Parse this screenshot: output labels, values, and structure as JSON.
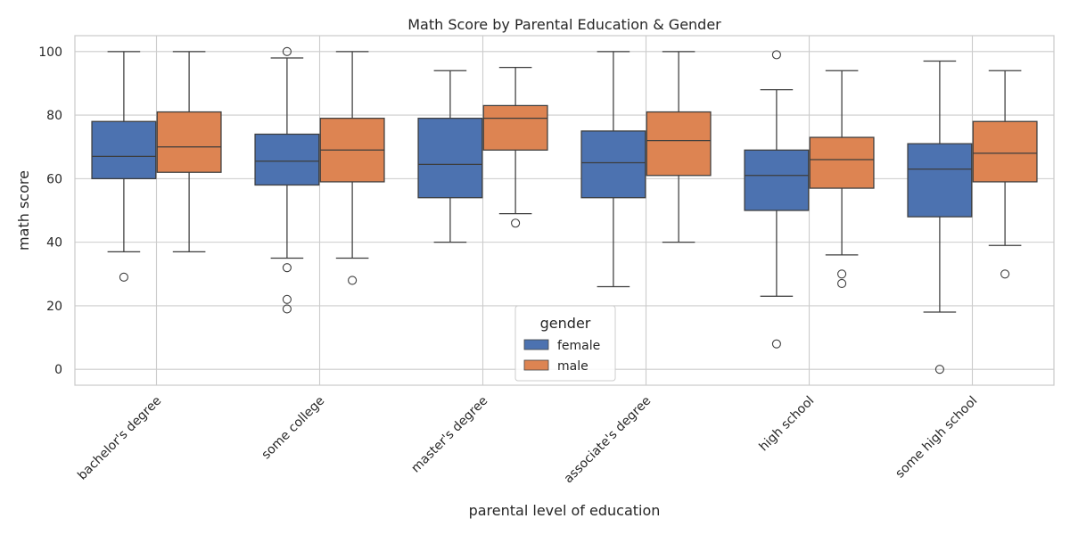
{
  "chart_data": {
    "type": "box",
    "title": "Math Score by Parental Education & Gender",
    "xlabel": "parental level of education",
    "ylabel": "math score",
    "ylim": [
      -5,
      105
    ],
    "yticks": [
      0,
      20,
      40,
      60,
      80,
      100
    ],
    "grid": "on",
    "legend_placement": "bottom-center",
    "legend_title": "gender",
    "categories": [
      "bachelor's degree",
      "some college",
      "master's degree",
      "associate's degree",
      "high school",
      "some high school"
    ],
    "series": [
      {
        "name": "female",
        "color": "#4c72b0",
        "boxes": [
          {
            "whisker_low": 37,
            "q1": 60,
            "median": 67,
            "q3": 78,
            "whisker_high": 100,
            "outliers": [
              29
            ]
          },
          {
            "whisker_low": 35,
            "q1": 58,
            "median": 65.5,
            "q3": 74,
            "whisker_high": 98,
            "outliers": [
              100,
              32,
              22,
              19
            ]
          },
          {
            "whisker_low": 40,
            "q1": 54,
            "median": 64.5,
            "q3": 79,
            "whisker_high": 94,
            "outliers": []
          },
          {
            "whisker_low": 26,
            "q1": 54,
            "median": 65,
            "q3": 75,
            "whisker_high": 100,
            "outliers": []
          },
          {
            "whisker_low": 23,
            "q1": 50,
            "median": 61,
            "q3": 69,
            "whisker_high": 88,
            "outliers": [
              99,
              8
            ]
          },
          {
            "whisker_low": 18,
            "q1": 48,
            "median": 63,
            "q3": 71,
            "whisker_high": 97,
            "outliers": [
              0
            ]
          }
        ]
      },
      {
        "name": "male",
        "color": "#dd8452",
        "boxes": [
          {
            "whisker_low": 37,
            "q1": 62,
            "median": 70,
            "q3": 81,
            "whisker_high": 100,
            "outliers": []
          },
          {
            "whisker_low": 35,
            "q1": 59,
            "median": 69,
            "q3": 79,
            "whisker_high": 100,
            "outliers": [
              28
            ]
          },
          {
            "whisker_low": 49,
            "q1": 69,
            "median": 79,
            "q3": 83,
            "whisker_high": 95,
            "outliers": [
              46
            ]
          },
          {
            "whisker_low": 40,
            "q1": 61,
            "median": 72,
            "q3": 81,
            "whisker_high": 100,
            "outliers": []
          },
          {
            "whisker_low": 36,
            "q1": 57,
            "median": 66,
            "q3": 73,
            "whisker_high": 94,
            "outliers": [
              30,
              27
            ]
          },
          {
            "whisker_low": 39,
            "q1": 59,
            "median": 68,
            "q3": 78,
            "whisker_high": 94,
            "outliers": [
              30
            ]
          }
        ]
      }
    ]
  }
}
